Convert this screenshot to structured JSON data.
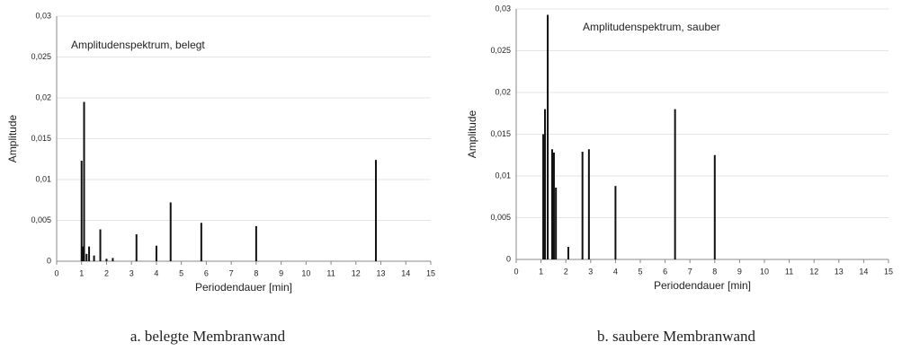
{
  "chart_data": [
    {
      "type": "bar",
      "title": "Amplitudenspektrum, belegt",
      "caption": "a. belegte Membranwand",
      "x_label": "Periodendauer [min]",
      "y_label": "Amplitude",
      "color": "#111111",
      "grid": true,
      "x": [
        1.0,
        1.05,
        1.1,
        1.2,
        1.3,
        1.5,
        1.75,
        2.0,
        2.25,
        3.2,
        4.0,
        4.57,
        5.8,
        8.0,
        12.8
      ],
      "values": [
        0.0123,
        0.0018,
        0.0195,
        0.0009,
        0.0018,
        0.0007,
        0.0039,
        0.0003,
        0.0004,
        0.0033,
        0.0019,
        0.0072,
        0.0047,
        0.0043,
        0.0124
      ],
      "xlim": [
        0,
        15
      ],
      "xticks": [
        0,
        1,
        2,
        3,
        4,
        5,
        6,
        7,
        8,
        9,
        10,
        11,
        12,
        13,
        14,
        15
      ],
      "ylim": [
        0,
        0.03
      ],
      "yticks": [
        0,
        {
          "value": 0.005,
          "label": "0,005"
        },
        {
          "value": 0.01,
          "label": "0,01"
        },
        {
          "value": 0.015,
          "label": "0,015"
        },
        {
          "value": 0.02,
          "label": "0,02"
        },
        {
          "value": 0.025,
          "label": "0,025"
        },
        {
          "value": 0.03,
          "label": "0,03"
        }
      ]
    },
    {
      "type": "bar",
      "title": "Amplitudenspektrum, sauber",
      "caption": "b. saubere Membranwand",
      "x_label": "Periodendauer [min]",
      "y_label": "Amplitude",
      "color": "#111111",
      "grid": true,
      "x": [
        1.09,
        1.16,
        1.27,
        1.45,
        1.52,
        1.6,
        2.1,
        2.67,
        2.93,
        4.0,
        6.4,
        8.0
      ],
      "values": [
        0.015,
        0.018,
        0.0293,
        0.0132,
        0.0128,
        0.0086,
        0.0015,
        0.0129,
        0.0132,
        0.0088,
        0.018,
        0.0125
      ],
      "xlim": [
        0,
        15
      ],
      "xticks": [
        0,
        1,
        2,
        3,
        4,
        5,
        6,
        7,
        8,
        9,
        10,
        11,
        12,
        13,
        14,
        15
      ],
      "ylim": [
        0,
        0.03
      ],
      "yticks": [
        0,
        {
          "value": 0.005,
          "label": "0,005"
        },
        {
          "value": 0.01,
          "label": "0,01"
        },
        {
          "value": 0.015,
          "label": "0,015"
        },
        {
          "value": 0.02,
          "label": "0,02"
        },
        {
          "value": 0.025,
          "label": "0,025"
        },
        {
          "value": 0.03,
          "label": "0,03"
        }
      ]
    }
  ]
}
